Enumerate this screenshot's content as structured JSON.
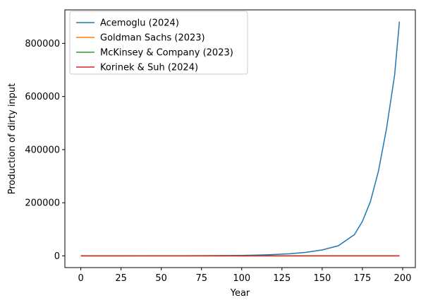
{
  "chart_data": {
    "type": "line",
    "title": "",
    "xlabel": "Year",
    "ylabel": "Production of dirty input",
    "xlim": [
      -9.9,
      207.9
    ],
    "ylim": [
      -44000,
      926000
    ],
    "xticks": [
      0,
      25,
      50,
      75,
      100,
      125,
      150,
      175,
      200
    ],
    "yticks": [
      0,
      200000,
      400000,
      600000,
      800000
    ],
    "grid": false,
    "legend_position": "top-left",
    "series": [
      {
        "name": "Acemoglu (2024)",
        "color": "#1f77b4",
        "x": [
          0,
          25,
          50,
          75,
          100,
          110,
          120,
          130,
          140,
          150,
          160,
          170,
          175,
          180,
          185,
          190,
          195,
          198
        ],
        "y": [
          100,
          200,
          400,
          900,
          2000,
          3100,
          5000,
          8200,
          13500,
          22500,
          38000,
          80000,
          130000,
          205000,
          320000,
          480000,
          680000,
          882000
        ]
      },
      {
        "name": "Goldman Sachs (2023)",
        "color": "#ff7f0e",
        "x": [
          0,
          50,
          100,
          150,
          198
        ],
        "y": [
          100,
          100,
          100,
          100,
          100
        ]
      },
      {
        "name": "McKinsey & Company (2023)",
        "color": "#2ca02c",
        "x": [
          0,
          50,
          100,
          150,
          198
        ],
        "y": [
          100,
          100,
          100,
          100,
          100
        ]
      },
      {
        "name": "Korinek & Suh (2024)",
        "color": "#d62728",
        "x": [
          0,
          50,
          100,
          150,
          198
        ],
        "y": [
          100,
          100,
          100,
          100,
          100
        ]
      }
    ]
  }
}
